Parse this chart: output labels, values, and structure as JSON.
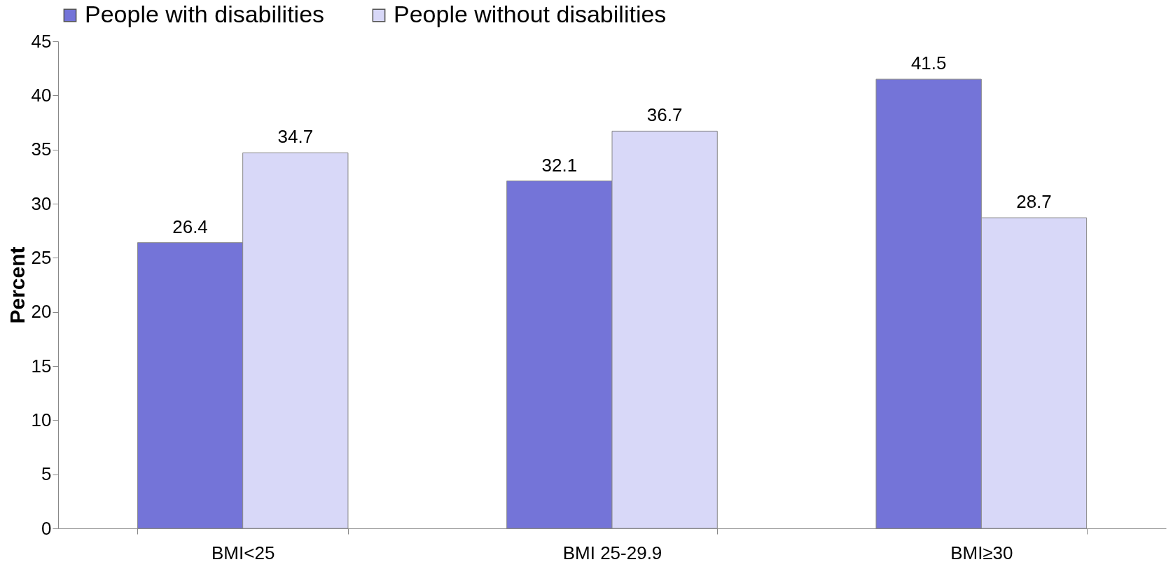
{
  "chart_data": {
    "type": "bar",
    "ylabel": "Percent",
    "categories": [
      "BMI<25",
      "BMI 25-29.9",
      "BMI≥30"
    ],
    "series": [
      {
        "name": "People with disabilities",
        "color": "#7474d8",
        "values": [
          26.4,
          32.1,
          41.5
        ]
      },
      {
        "name": "People without disabilities",
        "color": "#d8d8f8",
        "values": [
          34.7,
          36.7,
          28.7
        ]
      }
    ],
    "ylim": [
      0,
      45
    ],
    "yticks": [
      0,
      5,
      10,
      15,
      20,
      25,
      30,
      35,
      40,
      45
    ],
    "data_labels": true,
    "legend": "top",
    "grid": false
  }
}
